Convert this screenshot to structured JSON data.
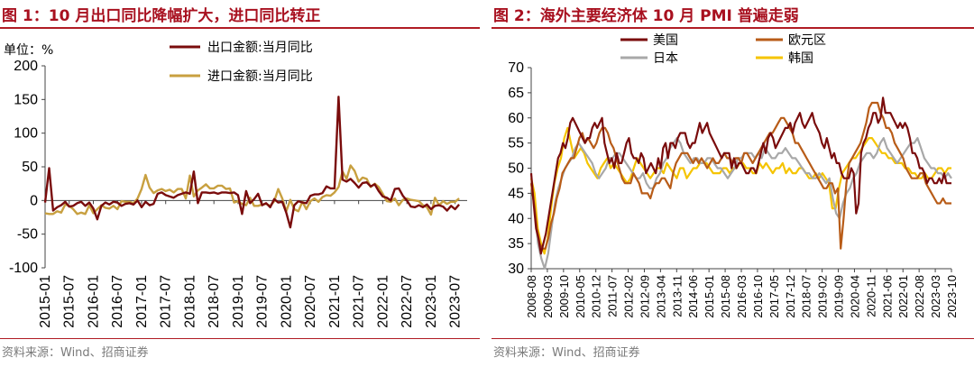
{
  "left": {
    "title": "图 1：10 月出口同比降幅扩大，进口同比转正",
    "source": "资料来源：Wind、招商证券"
  },
  "right": {
    "title": "图 2：海外主要经济体 10 月 PMI 普遍走弱",
    "source": "资料来源：Wind、招商证券"
  },
  "chart_data": [
    {
      "type": "line",
      "unit_label": "单位：%",
      "ylim": [
        -100,
        200
      ],
      "yticks": [
        "200",
        "150",
        "100",
        "50",
        "0",
        "-50",
        "-100"
      ],
      "negative_tick_color": "#e00000",
      "grid": false,
      "legend_position": "top",
      "x_start": "2015-01",
      "x_tick_labels": [
        "2015-01",
        "2015-07",
        "2016-01",
        "2016-07",
        "2017-01",
        "2017-07",
        "2018-01",
        "2018-07",
        "2019-01",
        "2019-07",
        "2020-01",
        "2020-07",
        "2021-01",
        "2021-07",
        "2022-01",
        "2022-07",
        "2023-01",
        "2023-07"
      ],
      "series": [
        {
          "name": "出口金额:当月同比",
          "color": "#7a0c0c",
          "values": [
            -3,
            48,
            -15,
            -10,
            -7,
            -2,
            -9,
            -8,
            -4,
            -2,
            -8,
            -3,
            -12,
            -28,
            -8,
            -3,
            -6,
            -2,
            -3,
            -8,
            -5,
            -4,
            -6,
            0,
            -10,
            -2,
            -7,
            -5,
            10,
            12,
            8,
            6,
            4,
            8,
            10,
            12,
            10,
            43,
            -4,
            12,
            12,
            11,
            12,
            10,
            12,
            12,
            11,
            12,
            8,
            -20,
            14,
            -4,
            2,
            10,
            -7,
            -4,
            -10,
            2,
            -3,
            -2,
            -18,
            -40,
            -7,
            -1,
            -3,
            -4,
            7,
            9,
            9,
            11,
            21,
            18,
            18,
            154,
            31,
            28,
            32,
            26,
            19,
            26,
            27,
            21,
            24,
            14,
            6,
            4,
            0,
            17,
            18,
            7,
            0,
            -9,
            -10,
            -7,
            -10,
            -6,
            -13,
            -8,
            -7,
            -9,
            -15,
            -8,
            -13,
            -6
          ]
        },
        {
          "name": "进口金额:当月同比",
          "color": "#c8a040",
          "values": [
            -19,
            -20,
            -20,
            -16,
            -18,
            -6,
            -8,
            -13,
            -20,
            -18,
            -20,
            -7,
            -19,
            -13,
            -7,
            -11,
            -12,
            -8,
            -13,
            -1,
            -2,
            -2,
            -4,
            3,
            17,
            38,
            19,
            11,
            15,
            17,
            14,
            16,
            12,
            17,
            17,
            3,
            37,
            6,
            15,
            19,
            24,
            18,
            18,
            22,
            22,
            17,
            18,
            -3,
            -1,
            -5,
            -7,
            4,
            -8,
            -8,
            -6,
            -5,
            -8,
            -1,
            17,
            3,
            -16,
            1,
            -13,
            -16,
            -2,
            -13,
            -1,
            3,
            -2,
            5,
            8,
            7,
            12,
            20,
            43,
            32,
            52,
            44,
            28,
            34,
            32,
            20,
            25,
            20,
            10,
            -1,
            -2,
            3,
            -7,
            1,
            3,
            1,
            0,
            -1,
            -7,
            -10,
            -21,
            4,
            -7,
            -1,
            -5,
            -2,
            -2,
            3
          ]
        }
      ]
    },
    {
      "type": "line",
      "ylim": [
        30,
        70
      ],
      "yticks": [
        "70",
        "65",
        "60",
        "55",
        "50",
        "45",
        "40",
        "35",
        "30"
      ],
      "grid": false,
      "legend_position": "top",
      "x_start": "2008-08",
      "x_tick_labels": [
        "2008-08",
        "2009-03",
        "2009-10",
        "2010-05",
        "2010-12",
        "2011-07",
        "2012-02",
        "2012-09",
        "2013-04",
        "2013-11",
        "2014-06",
        "2015-01",
        "2015-08",
        "2016-03",
        "2016-10",
        "2017-05",
        "2017-12",
        "2018-07",
        "2019-02",
        "2019-09",
        "2020-04",
        "2020-11",
        "2021-06",
        "2022-01",
        "2022-08",
        "2023-03",
        "2023-10"
      ],
      "series": [
        {
          "name": "美国",
          "color": "#7a0c0c",
          "values": [
            49,
            43,
            38,
            36,
            33,
            35,
            37,
            40,
            43,
            46,
            49,
            52,
            53,
            55,
            54,
            56,
            59,
            60,
            59,
            58,
            57,
            56,
            55,
            56,
            56,
            58,
            59,
            58,
            59,
            60,
            55,
            53,
            51,
            52,
            50,
            53,
            51,
            51,
            53,
            55,
            56,
            53,
            52,
            52,
            51,
            53,
            52,
            49,
            50,
            51,
            50,
            49,
            52,
            50,
            54,
            55,
            52,
            55,
            55,
            54,
            56,
            57,
            57,
            57,
            55,
            54,
            55,
            55,
            57,
            59,
            57,
            58,
            59,
            57,
            56,
            55,
            54,
            53,
            52,
            53,
            53,
            53,
            50,
            52,
            50,
            51,
            51,
            50,
            49,
            49,
            50,
            50,
            49,
            51,
            53,
            55,
            53,
            56,
            57,
            56,
            54,
            55,
            56,
            57,
            58,
            58,
            59,
            57,
            59,
            60,
            61,
            59,
            58,
            59,
            60,
            61,
            59,
            58,
            57,
            55,
            54,
            56,
            54,
            52,
            53,
            51,
            51,
            49,
            48,
            48,
            48,
            50,
            49,
            41,
            43,
            53,
            55,
            56,
            58,
            59,
            61,
            61,
            59,
            60,
            64,
            61,
            61,
            61,
            60,
            59,
            58,
            59,
            58,
            59,
            58,
            56,
            53,
            53,
            52,
            50,
            50,
            49,
            47,
            48,
            48,
            47,
            47,
            48,
            47,
            49,
            47,
            47,
            47
          ]
        },
        {
          "name": "欧元区",
          "color": "#b85c18",
          "values": [
            47,
            43,
            38,
            35,
            34,
            34,
            36,
            39,
            41,
            44,
            46,
            49,
            50,
            51,
            52,
            52,
            54,
            56,
            57,
            55,
            56,
            55,
            54,
            55,
            57,
            58,
            58,
            57,
            55,
            54,
            52,
            50,
            48,
            47,
            47,
            47,
            49,
            48,
            47,
            45,
            45,
            45,
            44,
            46,
            47,
            47,
            48,
            48,
            47,
            46,
            49,
            51,
            52,
            53,
            53,
            53,
            52,
            51,
            52,
            51,
            52,
            51,
            50,
            51,
            52,
            51,
            51,
            52,
            53,
            52,
            52,
            51,
            52,
            52,
            51,
            53,
            53,
            52,
            51,
            52,
            53,
            54,
            55,
            56,
            57,
            57,
            58,
            59,
            60,
            60,
            59,
            58,
            57,
            55,
            55,
            54,
            53,
            52,
            51,
            50,
            49,
            48,
            47,
            46,
            46,
            47,
            47,
            45,
            46,
            34,
            40,
            47,
            51,
            52,
            53,
            54,
            55,
            57,
            59,
            62,
            63,
            63,
            63,
            61,
            60,
            58,
            58,
            57,
            55,
            54,
            53,
            52,
            50,
            49,
            48,
            48,
            48,
            49,
            49,
            47,
            46,
            45,
            44,
            43,
            43,
            44,
            43,
            43,
            43
          ]
        },
        {
          "name": "日本",
          "color": "#a8a8a8",
          "values": [
            47,
            42,
            35,
            32,
            30,
            33,
            38,
            43,
            46,
            48,
            50,
            51,
            52,
            54,
            55,
            54,
            53,
            52,
            51,
            49,
            48,
            49,
            50,
            52,
            52,
            53,
            53,
            52,
            51,
            50,
            49,
            48,
            48,
            49,
            47,
            46,
            46,
            48,
            49,
            51,
            52,
            54,
            55,
            56,
            55,
            53,
            52,
            51,
            52,
            52,
            51,
            51,
            52,
            52,
            51,
            50,
            50,
            49,
            48,
            49,
            50,
            52,
            52,
            53,
            53,
            53,
            52,
            53,
            52,
            54,
            53,
            52,
            52,
            53,
            53,
            54,
            53,
            52,
            52,
            51,
            50,
            49,
            49,
            48,
            48,
            49,
            48,
            47,
            48,
            44,
            41,
            40,
            43,
            45,
            46,
            48,
            49,
            51,
            52,
            53,
            53,
            52,
            53,
            55,
            56,
            54,
            53,
            52,
            51,
            52,
            53,
            54,
            55,
            55,
            56,
            54,
            52,
            51,
            50,
            50,
            49,
            49,
            48,
            49,
            48
          ]
        },
        {
          "name": "韩国",
          "color": "#f5c400",
          "values": [
            48,
            45,
            38,
            35,
            33,
            36,
            42,
            47,
            50,
            52,
            56,
            58,
            55,
            52,
            53,
            54,
            53,
            51,
            50,
            49,
            48,
            50,
            51,
            52,
            50,
            51,
            50,
            49,
            48,
            47,
            48,
            50,
            52,
            51,
            50,
            49,
            48,
            49,
            50,
            50,
            49,
            51,
            50,
            49,
            48,
            50,
            50,
            48,
            49,
            50,
            50,
            51,
            51,
            51,
            50,
            49,
            49,
            49,
            50,
            50,
            49,
            50,
            50,
            51,
            51,
            50,
            50,
            49,
            49,
            51,
            50,
            51,
            50,
            49,
            50,
            50,
            51,
            49,
            50,
            49,
            49,
            50,
            50,
            49,
            48,
            48,
            49,
            48,
            49,
            48,
            47,
            42,
            42,
            46,
            49,
            50,
            51,
            52,
            52,
            53,
            54,
            55,
            56,
            56,
            55,
            54,
            53,
            53,
            52,
            52,
            51,
            51,
            51,
            50,
            50,
            49,
            49,
            48,
            48,
            49,
            48,
            48,
            49,
            50,
            50,
            49,
            50,
            50
          ]
        }
      ]
    }
  ]
}
